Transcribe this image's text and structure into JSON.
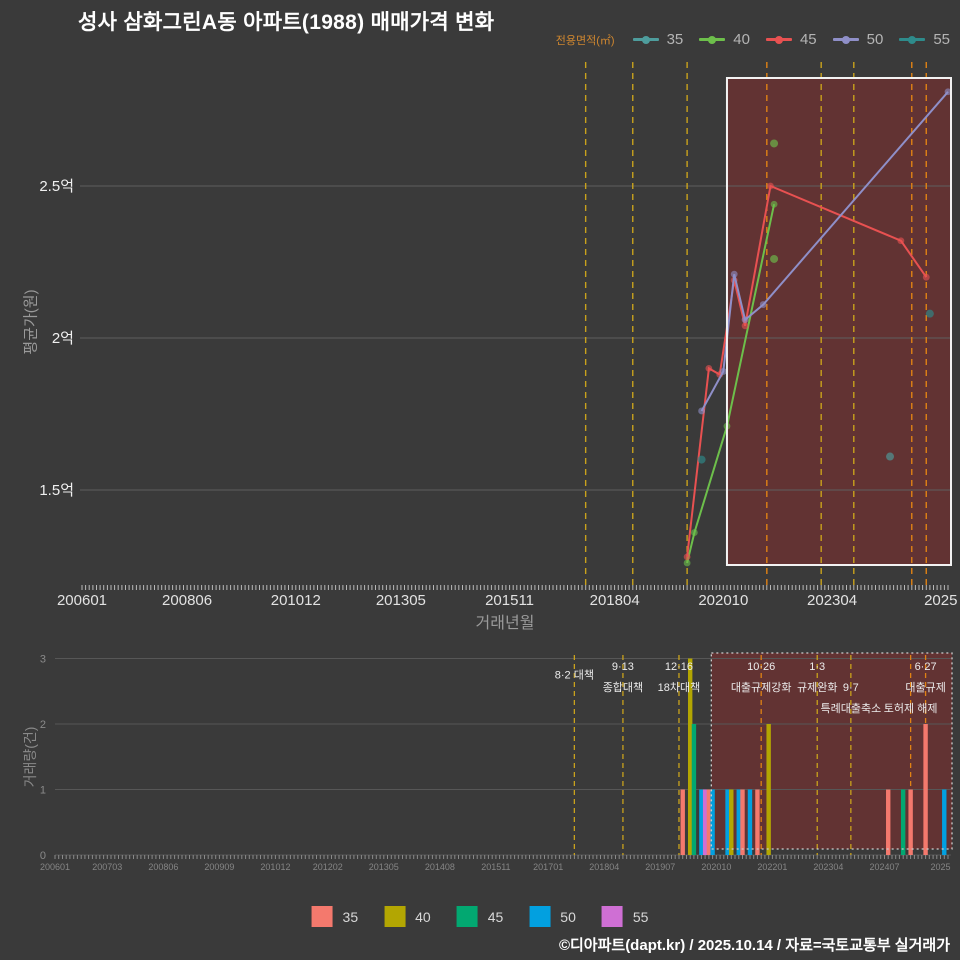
{
  "title": "성사 삼화그린A동 아파트(1988) 매매가격 변화",
  "copyright": "©디아파트(dapt.kr) / 2025.10.14 / 자료=국토교통부 실거래가",
  "top_legend": {
    "title": "전용면적(㎡)",
    "items": [
      {
        "label": "35",
        "color": "#4e9d9d"
      },
      {
        "label": "40",
        "color": "#6dbf4b"
      },
      {
        "label": "45",
        "color": "#e85151"
      },
      {
        "label": "50",
        "color": "#8f8fc8"
      },
      {
        "label": "55",
        "color": "#2e8b8b"
      }
    ]
  },
  "bottom_legend": {
    "items": [
      {
        "label": "35",
        "color": "#f4796d"
      },
      {
        "label": "40",
        "color": "#b3a602"
      },
      {
        "label": "45",
        "color": "#02a871"
      },
      {
        "label": "50",
        "color": "#02a0e0"
      },
      {
        "label": "55",
        "color": "#cf6fd4"
      }
    ]
  },
  "policy_lines": [
    {
      "m": "201708",
      "color": "#c9a21c",
      "labels": [
        {
          "text": "8·2 대책",
          "row": 1.4
        }
      ]
    },
    {
      "m": "201809",
      "color": "#c9a21c",
      "labels": [
        {
          "text": "9·13",
          "row": 1
        },
        {
          "text": "종합대책",
          "row": 2
        }
      ]
    },
    {
      "m": "201912",
      "color": "#c9a21c",
      "labels": [
        {
          "text": "12·16",
          "row": 1
        },
        {
          "text": "18차대책",
          "row": 2
        }
      ]
    },
    {
      "m": "202110",
      "color": "#e08214",
      "labels": [
        {
          "text": "10·26",
          "row": 1
        },
        {
          "text": "대출규제강화",
          "row": 2
        }
      ]
    },
    {
      "m": "202301",
      "color": "#c9a21c",
      "labels": [
        {
          "text": "1·3",
          "row": 1
        },
        {
          "text": "규제완화",
          "row": 2
        }
      ]
    },
    {
      "m": "202310",
      "color": "#c9a21c",
      "labels": [
        {
          "text": "9·7",
          "row": 2
        },
        {
          "text": "특례대출축소",
          "row": 3
        }
      ]
    },
    {
      "m": "202502",
      "color": "#e08214",
      "labels": [
        {
          "text": "토허제 해제",
          "row": 3
        }
      ]
    },
    {
      "m": "202506",
      "color": "#e08214",
      "labels": [
        {
          "text": "6·27",
          "row": 1
        },
        {
          "text": "대출규제",
          "row": 2
        }
      ]
    }
  ],
  "chart_data": [
    {
      "type": "line",
      "name": "price",
      "ylabel": "평균가(원)",
      "xlabel": "거래년월",
      "unit": "억원",
      "ylim": [
        1.2,
        2.9
      ],
      "yticks": [
        {
          "v": 1.5,
          "label": "1.5억"
        },
        {
          "v": 2.0,
          "label": "2억"
        },
        {
          "v": 2.5,
          "label": "2.5억"
        }
      ],
      "xticks": [
        {
          "m": "200601",
          "label": "200601"
        },
        {
          "m": "200806",
          "label": "200806"
        },
        {
          "m": "201012",
          "label": "201012"
        },
        {
          "m": "201305",
          "label": "201305"
        },
        {
          "m": "201511",
          "label": "201511"
        },
        {
          "m": "201804",
          "label": "201804"
        },
        {
          "m": "202010",
          "label": "202010"
        },
        {
          "m": "202304",
          "label": "202304"
        },
        {
          "m": "202510",
          "label": "2025"
        }
      ],
      "series": [
        {
          "name": "35",
          "color": "#4e9d9d",
          "line": [],
          "dots": [
            {
              "m": "202408",
              "v": 1.61
            }
          ]
        },
        {
          "name": "40",
          "color": "#6dbf4b",
          "line": [
            {
              "m": "201912",
              "v": 1.26
            },
            {
              "m": "202002",
              "v": 1.36
            },
            {
              "m": "202011",
              "v": 1.71
            },
            {
              "m": "202112",
              "v": 2.44
            }
          ],
          "dots": [
            {
              "m": "202112",
              "v": 2.64
            },
            {
              "m": "202112",
              "v": 2.26
            }
          ]
        },
        {
          "name": "45",
          "color": "#e85151",
          "line": [
            {
              "m": "201912",
              "v": 1.28
            },
            {
              "m": "202006",
              "v": 1.9
            },
            {
              "m": "202009",
              "v": 1.88
            },
            {
              "m": "202101",
              "v": 2.19
            },
            {
              "m": "202104",
              "v": 2.04
            },
            {
              "m": "202111",
              "v": 2.5
            },
            {
              "m": "202411",
              "v": 2.32
            },
            {
              "m": "202506",
              "v": 2.2
            }
          ],
          "dots": []
        },
        {
          "name": "50",
          "color": "#8f8fc8",
          "line": [
            {
              "m": "202004",
              "v": 1.76
            },
            {
              "m": "202010",
              "v": 1.89
            },
            {
              "m": "202101",
              "v": 2.21
            },
            {
              "m": "202104",
              "v": 2.06
            },
            {
              "m": "202109",
              "v": 2.11
            },
            {
              "m": "202512",
              "v": 2.81
            }
          ],
          "dots": []
        },
        {
          "name": "55",
          "color": "#2e8b8b",
          "line": [],
          "dots": [
            {
              "m": "202004",
              "v": 1.6
            },
            {
              "m": "202507",
              "v": 2.08
            }
          ]
        }
      ],
      "highlight": {
        "from": "202011",
        "to": "202512"
      }
    },
    {
      "type": "bar",
      "name": "volume",
      "ylabel": "거래량(건)",
      "ylim": [
        0,
        3
      ],
      "yticks": [
        {
          "v": 0,
          "label": "0"
        },
        {
          "v": 1,
          "label": "1"
        },
        {
          "v": 2,
          "label": "2"
        },
        {
          "v": 3,
          "label": "3"
        }
      ],
      "xticks": [
        {
          "m": "200601",
          "label": "200601"
        },
        {
          "m": "200703",
          "label": "200703"
        },
        {
          "m": "200806",
          "label": "200806"
        },
        {
          "m": "200909",
          "label": "200909"
        },
        {
          "m": "201012",
          "label": "201012"
        },
        {
          "m": "201202",
          "label": "201202"
        },
        {
          "m": "201305",
          "label": "201305"
        },
        {
          "m": "201408",
          "label": "201408"
        },
        {
          "m": "201511",
          "label": "201511"
        },
        {
          "m": "201701",
          "label": "201701"
        },
        {
          "m": "201804",
          "label": "201804"
        },
        {
          "m": "201907",
          "label": "201907"
        },
        {
          "m": "202010",
          "label": "202010"
        },
        {
          "m": "202201",
          "label": "202201"
        },
        {
          "m": "202304",
          "label": "202304"
        },
        {
          "m": "202407",
          "label": "202407"
        },
        {
          "m": "202510",
          "label": "2025"
        }
      ],
      "bars": [
        {
          "m": "202001",
          "series": "35",
          "count": 1
        },
        {
          "m": "202003",
          "series": "40",
          "count": 3
        },
        {
          "m": "202004",
          "series": "45",
          "count": 2
        },
        {
          "m": "202006",
          "series": "50",
          "count": 1
        },
        {
          "m": "202007",
          "series": "55",
          "count": 1
        },
        {
          "m": "202008",
          "series": "35",
          "count": 1
        },
        {
          "m": "202009",
          "series": "50",
          "count": 1
        },
        {
          "m": "202101",
          "series": "50",
          "count": 1
        },
        {
          "m": "202102",
          "series": "40",
          "count": 1
        },
        {
          "m": "202104",
          "series": "50",
          "count": 1
        },
        {
          "m": "202105",
          "series": "35",
          "count": 1
        },
        {
          "m": "202107",
          "series": "50",
          "count": 1
        },
        {
          "m": "202109",
          "series": "35",
          "count": 1
        },
        {
          "m": "202112",
          "series": "40",
          "count": 2
        },
        {
          "m": "202408",
          "series": "35",
          "count": 1
        },
        {
          "m": "202412",
          "series": "45",
          "count": 1
        },
        {
          "m": "202502",
          "series": "35",
          "count": 1
        },
        {
          "m": "202506",
          "series": "35",
          "count": 2
        },
        {
          "m": "202511",
          "series": "50",
          "count": 1
        }
      ],
      "highlight": {
        "from": "202010",
        "to": "202512"
      }
    }
  ]
}
